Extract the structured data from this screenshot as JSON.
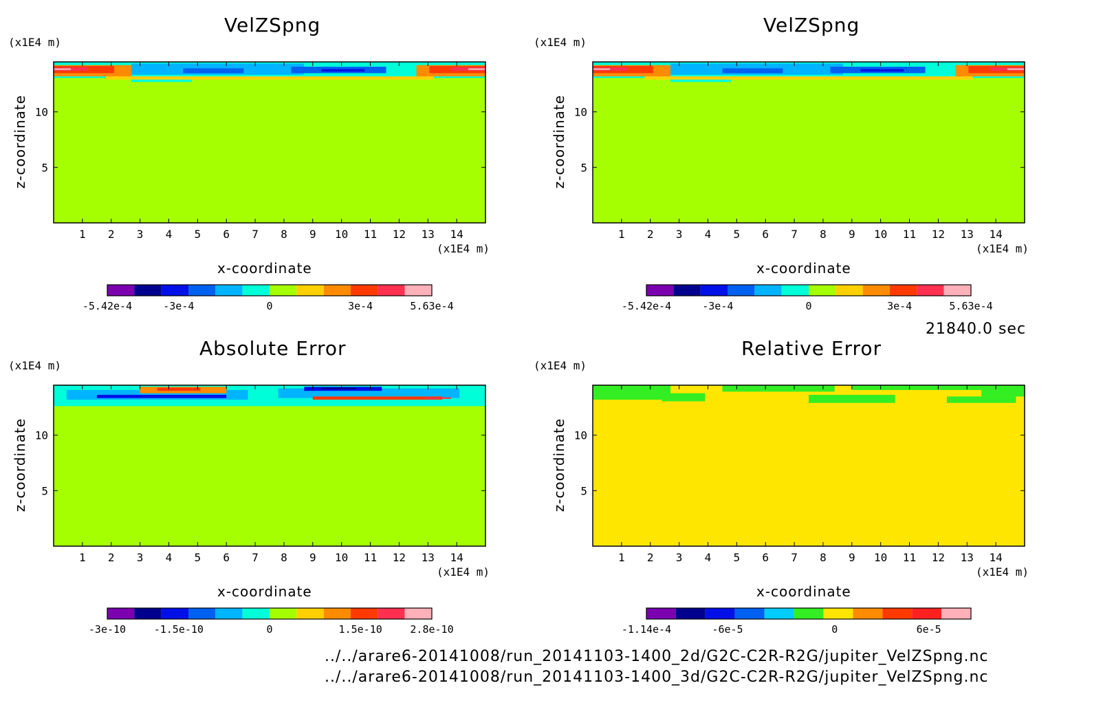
{
  "time_label": "21840.0 sec",
  "files": [
    "../../arare6-20141008/run_20141103-1400_2d/G2C-C2R-R2G/jupiter_VelZSpng.nc",
    "../../arare6-20141008/run_20141103-1400_3d/G2C-C2R-R2G/jupiter_VelZSpng.nc"
  ],
  "chart_data": [
    {
      "type": "heatmap",
      "title": "VelZSpng",
      "xlabel": "x-coordinate",
      "ylabel": "z-coordinate",
      "x_unit": "(x1E4 m)",
      "y_unit": "(x1E4 m)",
      "xticks": [
        "1",
        "2",
        "3",
        "4",
        "5",
        "6",
        "7",
        "8",
        "9",
        "10",
        "11",
        "12",
        "13",
        "14"
      ],
      "yticks": [
        "5",
        "10"
      ],
      "xlim": [
        0,
        15
      ],
      "ylim": [
        0,
        14.5
      ],
      "background_color": "#a6ff00",
      "colorbar": {
        "colors": [
          "#7a00b0",
          "#00008f",
          "#0010e6",
          "#0060f0",
          "#00b4ff",
          "#00ffd8",
          "#a6ff00",
          "#ffd000",
          "#ff8c00",
          "#ff3a00",
          "#ff3050",
          "#ffb0b8"
        ],
        "tick_labels": [
          "-5.42e-4",
          "-3e-4",
          "0",
          "3e-4",
          "5.63e-4"
        ]
      }
    },
    {
      "type": "heatmap",
      "title": "VelZSpng",
      "xlabel": "x-coordinate",
      "ylabel": "z-coordinate",
      "x_unit": "(x1E4 m)",
      "y_unit": "(x1E4 m)",
      "xticks": [
        "1",
        "2",
        "3",
        "4",
        "5",
        "6",
        "7",
        "8",
        "9",
        "10",
        "11",
        "12",
        "13",
        "14"
      ],
      "yticks": [
        "5",
        "10"
      ],
      "xlim": [
        0,
        15
      ],
      "ylim": [
        0,
        14.5
      ],
      "background_color": "#a6ff00",
      "colorbar": {
        "colors": [
          "#7a00b0",
          "#00008f",
          "#0010e6",
          "#0060f0",
          "#00b4ff",
          "#00ffd8",
          "#a6ff00",
          "#ffd000",
          "#ff8c00",
          "#ff3a00",
          "#ff3050",
          "#ffb0b8"
        ],
        "tick_labels": [
          "-5.42e-4",
          "-3e-4",
          "0",
          "3e-4",
          "5.63e-4"
        ]
      }
    },
    {
      "type": "heatmap",
      "title": "Absolute Error",
      "xlabel": "x-coordinate",
      "ylabel": "z-coordinate",
      "x_unit": "(x1E4 m)",
      "y_unit": "(x1E4 m)",
      "xticks": [
        "1",
        "2",
        "3",
        "4",
        "5",
        "6",
        "7",
        "8",
        "9",
        "10",
        "11",
        "12",
        "13",
        "14"
      ],
      "yticks": [
        "5",
        "10"
      ],
      "xlim": [
        0,
        15
      ],
      "ylim": [
        0,
        14.5
      ],
      "background_color": "#a6ff00",
      "colorbar": {
        "colors": [
          "#7a00b0",
          "#00008f",
          "#0010e6",
          "#0060f0",
          "#00b4ff",
          "#00ffd8",
          "#a6ff00",
          "#ffd000",
          "#ff8c00",
          "#ff3a00",
          "#ff3050",
          "#ffb0b8"
        ],
        "tick_labels": [
          "-3e-10",
          "-1.5e-10",
          "0",
          "1.5e-10",
          "2.8e-10"
        ]
      }
    },
    {
      "type": "heatmap",
      "title": "Relative Error",
      "xlabel": "x-coordinate",
      "ylabel": "z-coordinate",
      "x_unit": "(x1E4 m)",
      "y_unit": "(x1E4 m)",
      "xticks": [
        "1",
        "2",
        "3",
        "4",
        "5",
        "6",
        "7",
        "8",
        "9",
        "10",
        "11",
        "12",
        "13",
        "14"
      ],
      "yticks": [
        "5",
        "10"
      ],
      "xlim": [
        0,
        15
      ],
      "ylim": [
        0,
        14.5
      ],
      "background_color": "#ffe600",
      "colorbar": {
        "colors": [
          "#7a00b0",
          "#00008f",
          "#0010e6",
          "#0060f0",
          "#00ccff",
          "#33ee22",
          "#ffe600",
          "#ff8c00",
          "#ff3a00",
          "#ff2020",
          "#ffb0b8"
        ],
        "tick_labels": [
          "-1.14e-4",
          "-6e-5",
          "0",
          "6e-5"
        ]
      }
    }
  ]
}
